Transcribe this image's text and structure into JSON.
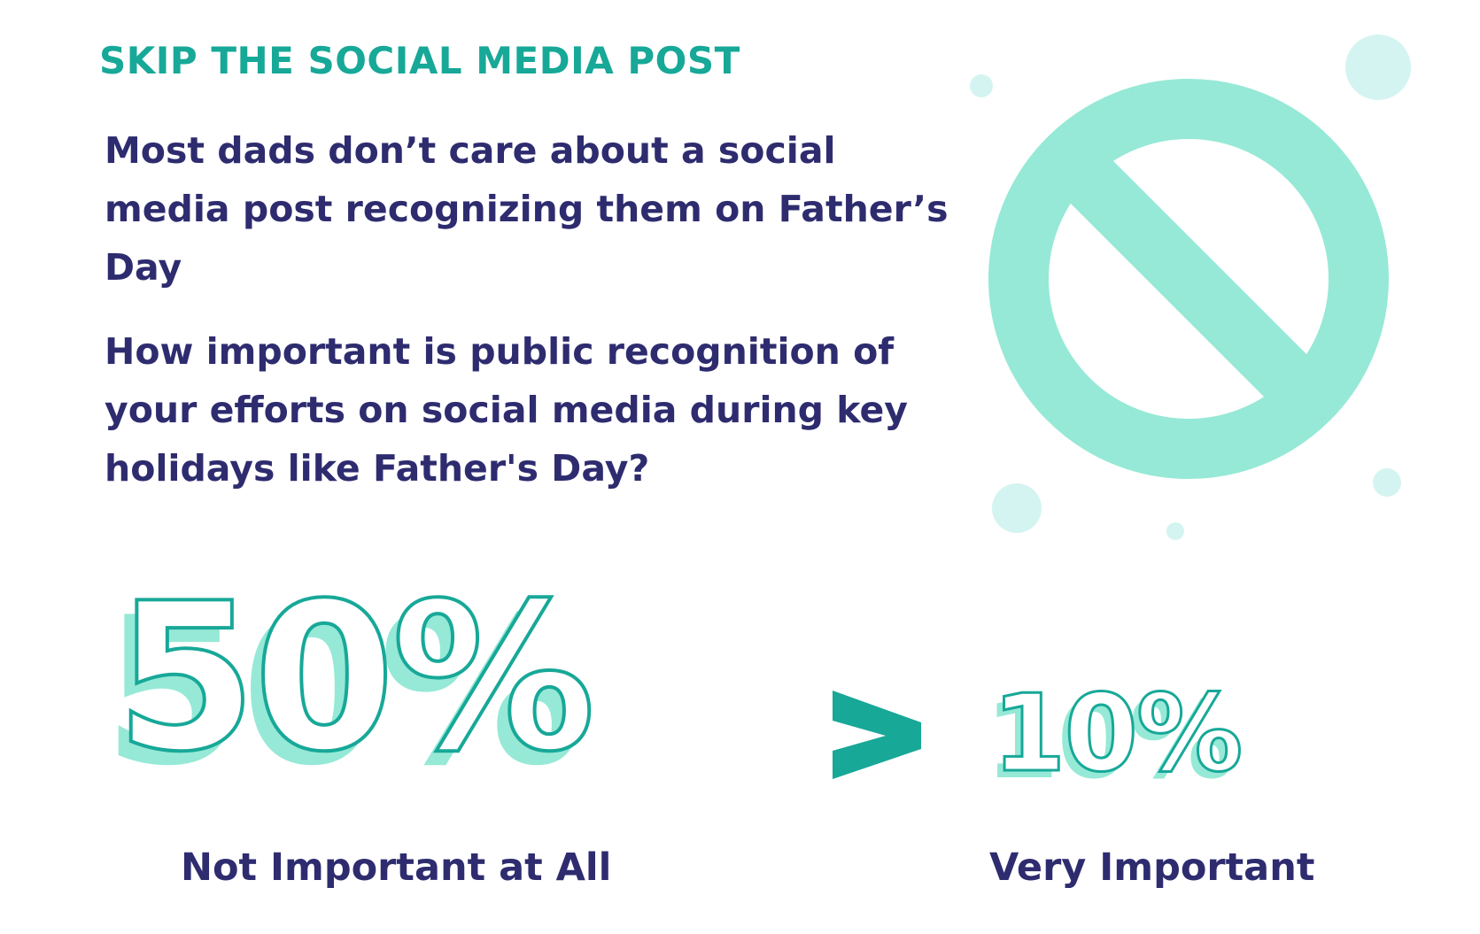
{
  "header": {
    "eyebrow": "SKIP THE SOCIAL MEDIA POST"
  },
  "body": {
    "statement": "Most dads don’t care about a social media post recognizing them on Father’s Day",
    "question": "How important is public recognition of your efforts on social media during key holidays like Father's Day?"
  },
  "stats": {
    "left": {
      "value": "50%",
      "label": "Not Important at All"
    },
    "comparator": "greater-than-icon",
    "right": {
      "value": "10%",
      "label": "Very Important"
    }
  },
  "icons": {
    "decor": "prohibited-sign-icon",
    "comparator": "greater-than-icon"
  },
  "colors": {
    "teal_dark": "#17a898",
    "mint": "#96e9d6",
    "light_aqua": "#d4f4f1",
    "navy": "#2e2c6f"
  }
}
